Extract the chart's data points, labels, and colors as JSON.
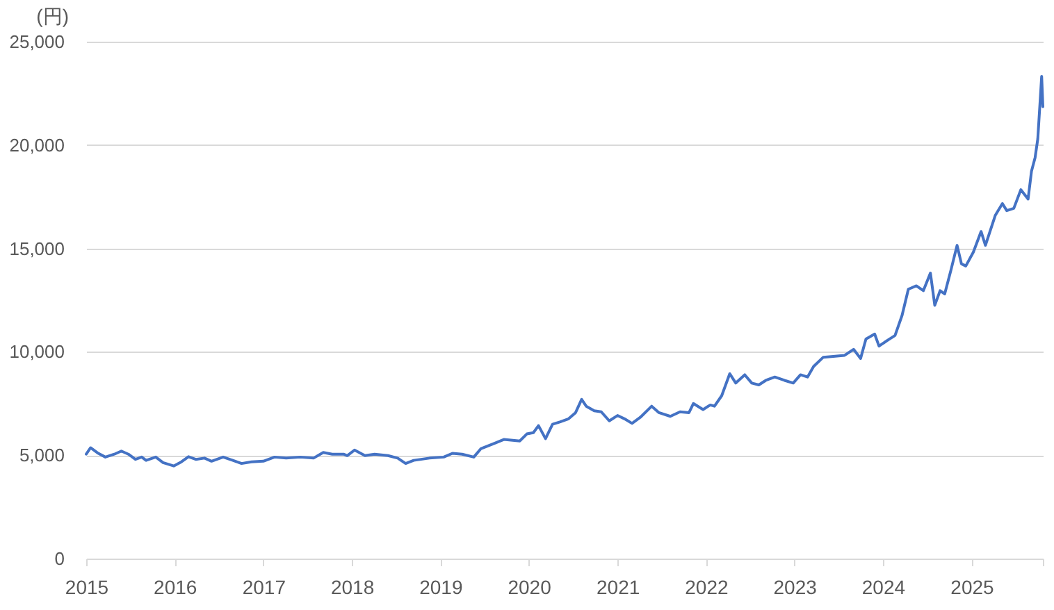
{
  "chart_data": {
    "type": "line",
    "ylabel": "(円)",
    "color": "#4472c4",
    "line_style": "solid",
    "grid": "y",
    "x": [
      "2015-01-01",
      "2015-01-19",
      "2015-02-20",
      "2015-03-21",
      "2015-04-27",
      "2015-05-26",
      "2015-06-24",
      "2015-07-23",
      "2015-08-18",
      "2015-09-05",
      "2015-10-15",
      "2015-11-14",
      "2015-12-28",
      "2016-01-29",
      "2016-02-27",
      "2016-03-28",
      "2016-05-03",
      "2016-06-01",
      "2016-07-19",
      "2016-08-28",
      "2016-10-03",
      "2016-11-13",
      "2017-01-01",
      "2017-02-16",
      "2017-04-05",
      "2017-06-02",
      "2017-07-27",
      "2017-09-05",
      "2017-10-12",
      "2017-11-28",
      "2017-12-13",
      "2018-01-12",
      "2018-02-24",
      "2018-04-05",
      "2018-05-30",
      "2018-07-09",
      "2018-08-11",
      "2018-09-13",
      "2018-11-17",
      "2019-01-15",
      "2019-02-20",
      "2019-04-01",
      "2019-05-19",
      "2019-06-17",
      "2019-08-14",
      "2019-09-20",
      "2019-11-25",
      "2019-12-24",
      "2020-01-20",
      "2020-02-10",
      "2020-03-10",
      "2020-04-08",
      "2020-05-08",
      "2020-06-13",
      "2020-07-12",
      "2020-08-06",
      "2020-08-25",
      "2020-09-27",
      "2020-10-26",
      "2020-11-28",
      "2021-01-01",
      "2021-01-30",
      "2021-03-02",
      "2021-04-05",
      "2021-05-22",
      "2021-06-21",
      "2021-08-07",
      "2021-09-16",
      "2021-10-23",
      "2021-11-10",
      "2021-12-20",
      "2022-01-19",
      "2022-02-05",
      "2022-03-07",
      "2022-04-09",
      "2022-05-04",
      "2022-06-10",
      "2022-07-09",
      "2022-08-07",
      "2022-09-05",
      "2022-10-12",
      "2022-11-21",
      "2022-12-27",
      "2023-01-26",
      "2023-02-24",
      "2023-03-21",
      "2023-04-30",
      "2023-06-10",
      "2023-07-27",
      "2023-09-02",
      "2023-10-01",
      "2023-10-23",
      "2023-11-28",
      "2023-12-16",
      "2024-01-22",
      "2024-02-20",
      "2024-03-20",
      "2024-04-15",
      "2024-05-18",
      "2024-06-16",
      "2024-07-15",
      "2024-08-02",
      "2024-08-24",
      "2024-09-12",
      "2024-10-07",
      "2024-11-02",
      "2024-11-20",
      "2024-12-08",
      "2025-01-08",
      "2025-02-09",
      "2025-02-27",
      "2025-04-09",
      "2025-05-08",
      "2025-05-26",
      "2025-06-24",
      "2025-07-23",
      "2025-08-22",
      "2025-09-05",
      "2025-09-20",
      "2025-10-01",
      "2025-10-17",
      "2025-10-22"
    ],
    "values": [
      5050,
      5360,
      5090,
      4910,
      5050,
      5200,
      5050,
      4800,
      4910,
      4750,
      4910,
      4640,
      4480,
      4680,
      4930,
      4800,
      4860,
      4710,
      4910,
      4750,
      4600,
      4680,
      4710,
      4910,
      4860,
      4910,
      4860,
      5130,
      5050,
      5050,
      4980,
      5250,
      4980,
      5050,
      4980,
      4860,
      4600,
      4750,
      4860,
      4910,
      5090,
      5050,
      4910,
      5310,
      5580,
      5760,
      5690,
      6030,
      6090,
      6430,
      5800,
      6500,
      6610,
      6760,
      7060,
      7700,
      7370,
      7150,
      7100,
      6660,
      6920,
      6760,
      6540,
      6830,
      7370,
      7060,
      6880,
      7100,
      7060,
      7500,
      7210,
      7430,
      7370,
      7880,
      8940,
      8490,
      8890,
      8490,
      8400,
      8620,
      8780,
      8620,
      8490,
      8890,
      8780,
      9290,
      9740,
      9780,
      9830,
      10120,
      9680,
      10620,
      10860,
      10280,
      10570,
      10790,
      11760,
      13030,
      13190,
      12960,
      13810,
      12250,
      12960,
      12800,
      13920,
      15150,
      14260,
      14150,
      14820,
      15820,
      15150,
      16610,
      17170,
      16830,
      16940,
      17840,
      17390,
      18730,
      19400,
      20300,
      23320,
      21860
    ],
    "xlim": [
      "2015-01-01",
      "2025-10-22"
    ],
    "xticks": [
      "2015",
      "2016",
      "2017",
      "2018",
      "2019",
      "2020",
      "2021",
      "2022",
      "2023",
      "2024",
      "2025",
      {
        "value": "2025-10-22",
        "label": null
      }
    ],
    "ylim": [
      0,
      25000
    ],
    "yticks": [
      0,
      {
        "value": 5000,
        "label": "5,000"
      },
      {
        "value": 10000,
        "label": "10,000"
      },
      {
        "value": 15000,
        "label": "15,000"
      },
      {
        "value": 20000,
        "label": "20,000"
      },
      {
        "value": 25000,
        "label": "25,000"
      }
    ]
  }
}
